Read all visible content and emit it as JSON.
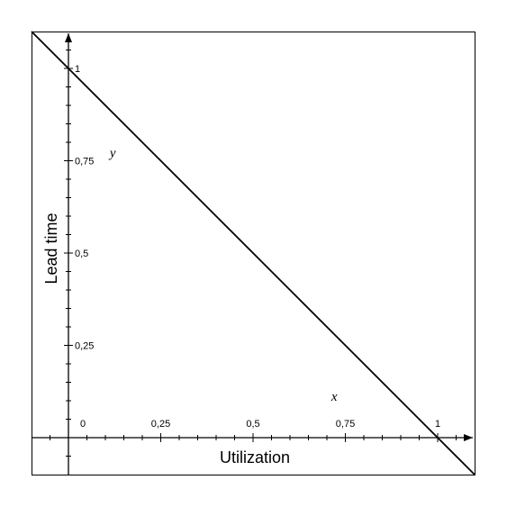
{
  "chart_data": {
    "type": "line",
    "xlabel": "Utilization",
    "ylabel": "Lead time",
    "xlim": [
      -0.1,
      1.1
    ],
    "ylim": [
      -0.1,
      1.1
    ],
    "grid": false,
    "x_ticks": [
      {
        "value": 0,
        "label": "0"
      },
      {
        "value": 0.25,
        "label": "0,25"
      },
      {
        "value": 0.5,
        "label": "0,5"
      },
      {
        "value": 0.75,
        "label": "0,75"
      },
      {
        "value": 1,
        "label": "1"
      }
    ],
    "y_ticks": [
      {
        "value": 0.25,
        "label": "0,25"
      },
      {
        "value": 0.5,
        "label": "0,5"
      },
      {
        "value": 0.75,
        "label": "0,75"
      },
      {
        "value": 1,
        "label": "1"
      }
    ],
    "series": [
      {
        "x": [
          -0.1,
          1.1
        ],
        "y": [
          1.1,
          -0.1
        ]
      }
    ],
    "annotations": [
      {
        "text": "y",
        "x": 0.12,
        "y": 0.76
      },
      {
        "text": "x",
        "x": 0.72,
        "y": 0.1
      }
    ]
  }
}
